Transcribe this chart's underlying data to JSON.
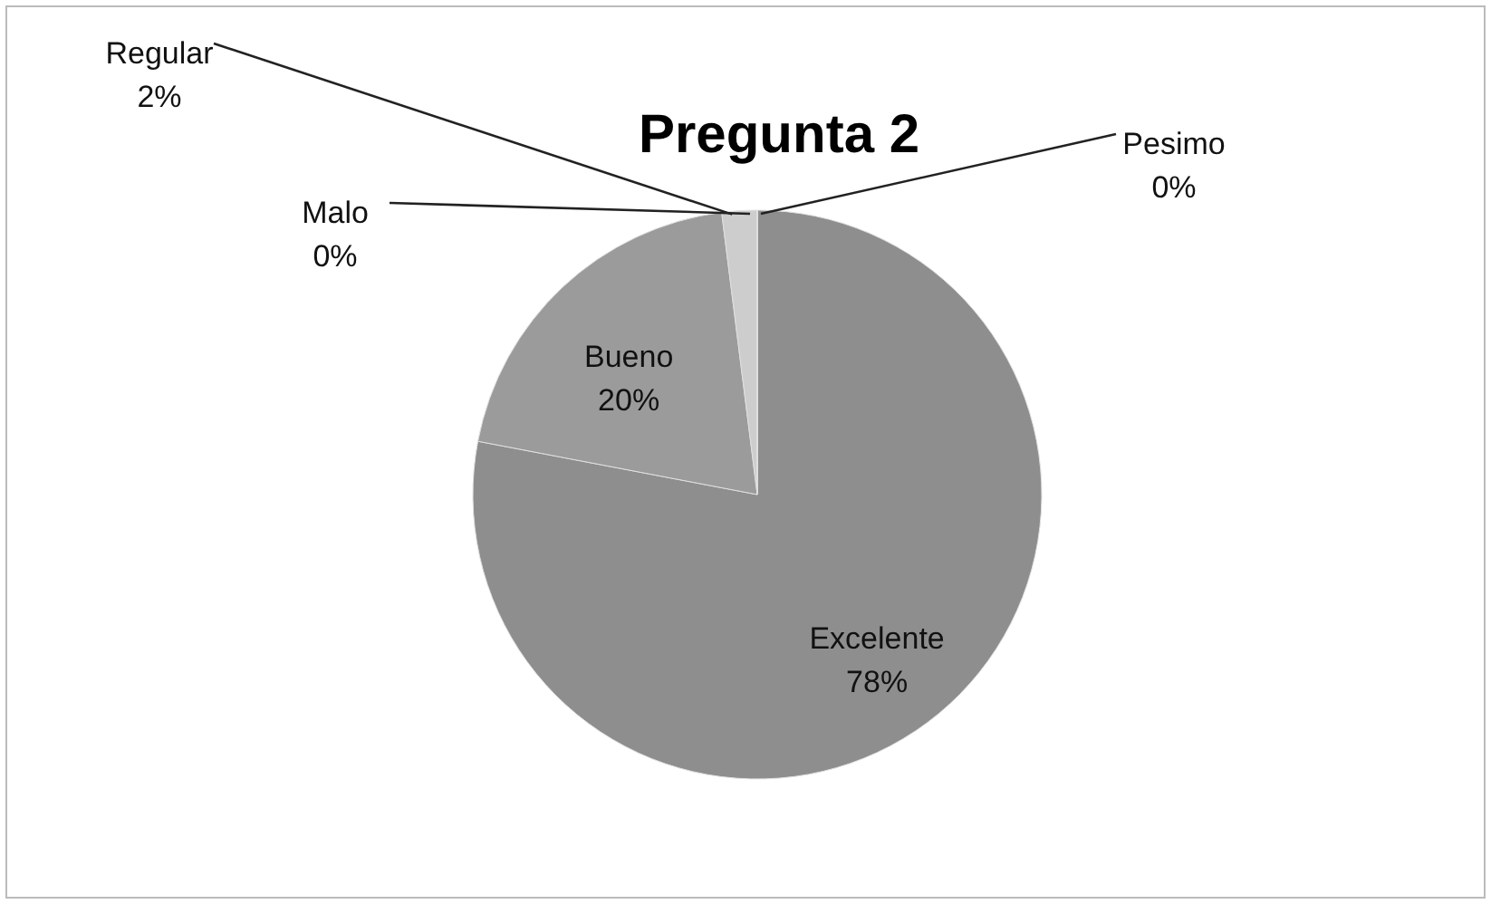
{
  "chart_data": {
    "type": "pie",
    "title": "Pregunta 2",
    "categories": [
      "Excelente",
      "Bueno",
      "Regular",
      "Malo",
      "Pesimo"
    ],
    "values": [
      78,
      20,
      2,
      0,
      0
    ],
    "value_labels": [
      "78%",
      "20%",
      "2%",
      "0%",
      "0%"
    ],
    "colors": [
      "#8e8e8e",
      "#9b9b9b",
      "#cdcdcd",
      "#b0b0b0",
      "#7a7a7a"
    ]
  }
}
